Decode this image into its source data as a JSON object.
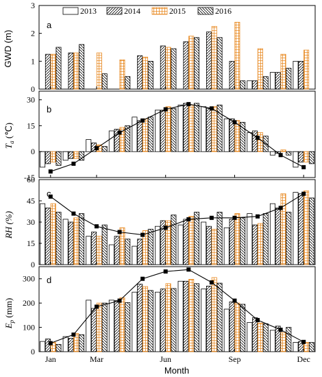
{
  "chart_data": [
    {
      "panel_label": "a",
      "type": "bar",
      "ylabel": "GWD (m)",
      "ylim": [
        0,
        3
      ],
      "yticks": [
        0,
        1,
        2,
        3
      ],
      "categories": [
        1,
        2,
        3,
        4,
        5,
        6,
        7,
        8,
        9,
        10,
        11,
        12
      ],
      "series": [
        {
          "name": "2013",
          "values": [
            null,
            null,
            null,
            null,
            null,
            null,
            null,
            null,
            null,
            0.3,
            0.6,
            1.0
          ]
        },
        {
          "name": "2014",
          "values": [
            1.25,
            1.3,
            null,
            null,
            1.2,
            1.55,
            1.7,
            2.05,
            1.0,
            0.3,
            0.6,
            1.0
          ]
        },
        {
          "name": "2015",
          "values": [
            1.25,
            1.3,
            1.3,
            1.05,
            1.15,
            1.5,
            1.9,
            2.25,
            2.4,
            1.45,
            1.25,
            1.4
          ]
        },
        {
          "name": "2016",
          "values": [
            1.5,
            1.6,
            0.55,
            0.45,
            1.0,
            1.45,
            1.85,
            1.85,
            0.3,
            0.45,
            0.75,
            null
          ]
        }
      ]
    },
    {
      "panel_label": "b",
      "type": "bar+line",
      "ylabel": "T_a (℃)",
      "ylim": [
        -15,
        35
      ],
      "yticks": [
        -15,
        0,
        15,
        30
      ],
      "categories": [
        1,
        2,
        3,
        4,
        5,
        6,
        7,
        8,
        9,
        10,
        11,
        12
      ],
      "series": [
        {
          "name": "2013",
          "values": [
            -9,
            -5,
            7,
            12,
            20,
            24,
            27,
            26,
            19,
            11,
            -2,
            -9
          ]
        },
        {
          "name": "2014",
          "values": [
            -7,
            -4,
            5,
            13,
            18,
            24,
            28,
            25,
            19,
            12,
            -1,
            -6
          ]
        },
        {
          "name": "2015",
          "values": [
            -6,
            -4,
            4,
            14,
            19,
            26,
            27,
            26,
            18,
            11,
            1,
            -6
          ]
        },
        {
          "name": "2016",
          "values": [
            -8,
            -5,
            3,
            15,
            20,
            25,
            28,
            27,
            17,
            9,
            -2,
            -7
          ]
        }
      ],
      "line": [
        -11.5,
        -7,
        2,
        11,
        18,
        24.5,
        27.5,
        25,
        17,
        8,
        -2,
        -9
      ]
    },
    {
      "panel_label": "c",
      "type": "bar+line",
      "ylabel": "RH (%)",
      "ylim": [
        0,
        60
      ],
      "yticks": [
        0,
        15,
        30,
        45,
        60
      ],
      "categories": [
        1,
        2,
        3,
        4,
        5,
        6,
        7,
        8,
        9,
        10,
        11,
        12
      ],
      "series": [
        {
          "name": "2013",
          "values": [
            43,
            32,
            20,
            14,
            13,
            27,
            28,
            30,
            26,
            36,
            43,
            51
          ]
        },
        {
          "name": "2014",
          "values": [
            40,
            30,
            23,
            20,
            18,
            31,
            32,
            27,
            32,
            28,
            40,
            50
          ]
        },
        {
          "name": "2015",
          "values": [
            43,
            33,
            20,
            26,
            24,
            31,
            34,
            25,
            36,
            29,
            50,
            52
          ]
        },
        {
          "name": "2016",
          "values": [
            37,
            36,
            28,
            18,
            25,
            35,
            37,
            37,
            33,
            36,
            37,
            47
          ]
        }
      ],
      "line": [
        48,
        36,
        27,
        23,
        21,
        26,
        32,
        33,
        33,
        34,
        40,
        50
      ]
    },
    {
      "panel_label": "d",
      "type": "bar+line",
      "ylabel": "E_p (mm)",
      "ylim": [
        0,
        350
      ],
      "yticks": [
        0,
        100,
        200,
        300
      ],
      "categories": [
        1,
        2,
        3,
        4,
        5,
        6,
        7,
        8,
        9,
        10,
        11,
        12
      ],
      "series": [
        {
          "name": "2013",
          "values": [
            42,
            62,
            212,
            212,
            245,
            245,
            290,
            258,
            175,
            120,
            88,
            38
          ]
        },
        {
          "name": "2014",
          "values": [
            52,
            55,
            178,
            210,
            278,
            258,
            290,
            270,
            205,
            140,
            105,
            42
          ]
        },
        {
          "name": "2015",
          "values": [
            38,
            75,
            200,
            222,
            268,
            280,
            298,
            305,
            200,
            118,
            78,
            38
          ]
        },
        {
          "name": "2016",
          "values": [
            30,
            70,
            200,
            202,
            252,
            260,
            280,
            282,
            195,
            115,
            100,
            38
          ]
        }
      ],
      "line": [
        35,
        70,
        185,
        210,
        300,
        330,
        338,
        285,
        210,
        130,
        90,
        40
      ]
    }
  ],
  "x_axis": {
    "label": "Month",
    "tick_labels": [
      "Jan",
      "Mar",
      "Jun",
      "Sep",
      "Dec"
    ],
    "tick_months": [
      1,
      3,
      6,
      9,
      12
    ],
    "xlim": [
      0.5,
      12.5
    ]
  },
  "legend": {
    "placement": "top-center",
    "entries": [
      "2013",
      "2014",
      "2015",
      "2016"
    ]
  },
  "colors": {
    "axis": "#000000",
    "bar_2015_hatch": "#e8881f",
    "line": "#000000"
  }
}
